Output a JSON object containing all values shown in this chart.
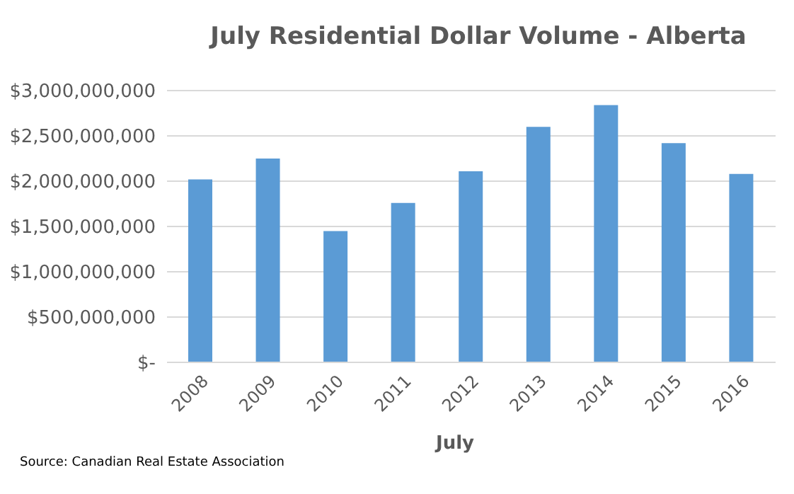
{
  "chart_data": {
    "type": "bar",
    "title": "July Residential Dollar Volume - Alberta",
    "xlabel": "July",
    "categories": [
      "2008",
      "2009",
      "2010",
      "2011",
      "2012",
      "2013",
      "2014",
      "2015",
      "2016"
    ],
    "values": [
      2020000000,
      2250000000,
      1450000000,
      1760000000,
      2110000000,
      2600000000,
      2840000000,
      2420000000,
      2080000000
    ],
    "color": "#5b9bd5",
    "ylim": [
      0,
      3000000000
    ],
    "yticks": [
      {
        "value": 0,
        "label": "$-"
      },
      {
        "value": 500000000,
        "label": "$500,000,000"
      },
      {
        "value": 1000000000,
        "label": "$1,000,000,000"
      },
      {
        "value": 1500000000,
        "label": "$1,500,000,000"
      },
      {
        "value": 2000000000,
        "label": "$2,000,000,000"
      },
      {
        "value": 2500000000,
        "label": "$2,500,000,000"
      },
      {
        "value": 3000000000,
        "label": "$3,000,000,000"
      }
    ],
    "grid": "y",
    "legend": false,
    "annotations": [
      "Source: Canadian Real Estate Association"
    ]
  }
}
